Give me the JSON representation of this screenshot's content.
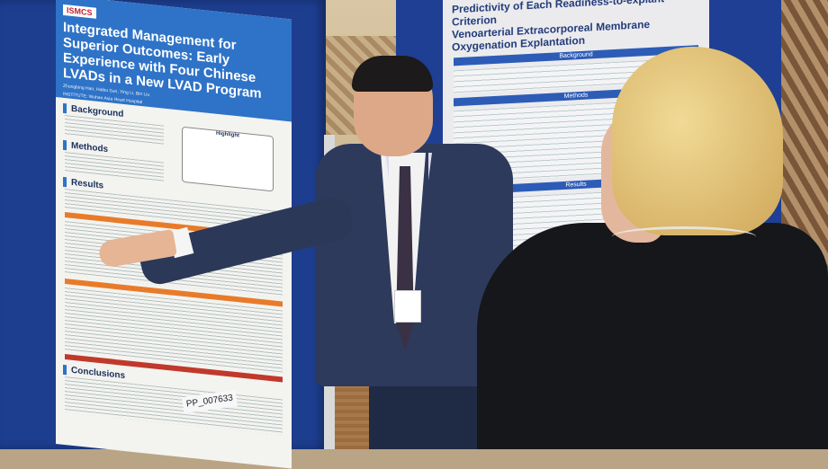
{
  "left_poster": {
    "logo": "ISMCS",
    "title": "Integrated Management for Superior Outcomes: Early Experience with Four Chinese LVADs in a New LVAD Program",
    "authors": "Zhongbing Han, Haibo Sun, Ying Li, Bin Liu",
    "institute": "INSTITUTE: Wuhan Asia Heart Hospital",
    "sections": [
      "Background",
      "Methods",
      "Results",
      "Conclusions"
    ],
    "highlight": "Highlight",
    "board_tag": "PP_007633"
  },
  "right_poster": {
    "title_line1": "Predictivity of Each Readiness-to-explant Criterion",
    "title_line2": "Venoarterial Extracorporeal Membrane Oxygenation Explantation",
    "sections": [
      "Background",
      "Methods",
      "Results"
    ]
  },
  "colors": {
    "board_blue": "#1d3d8f",
    "poster_header": "#2e73c7",
    "accent_orange": "#e87b2a"
  }
}
